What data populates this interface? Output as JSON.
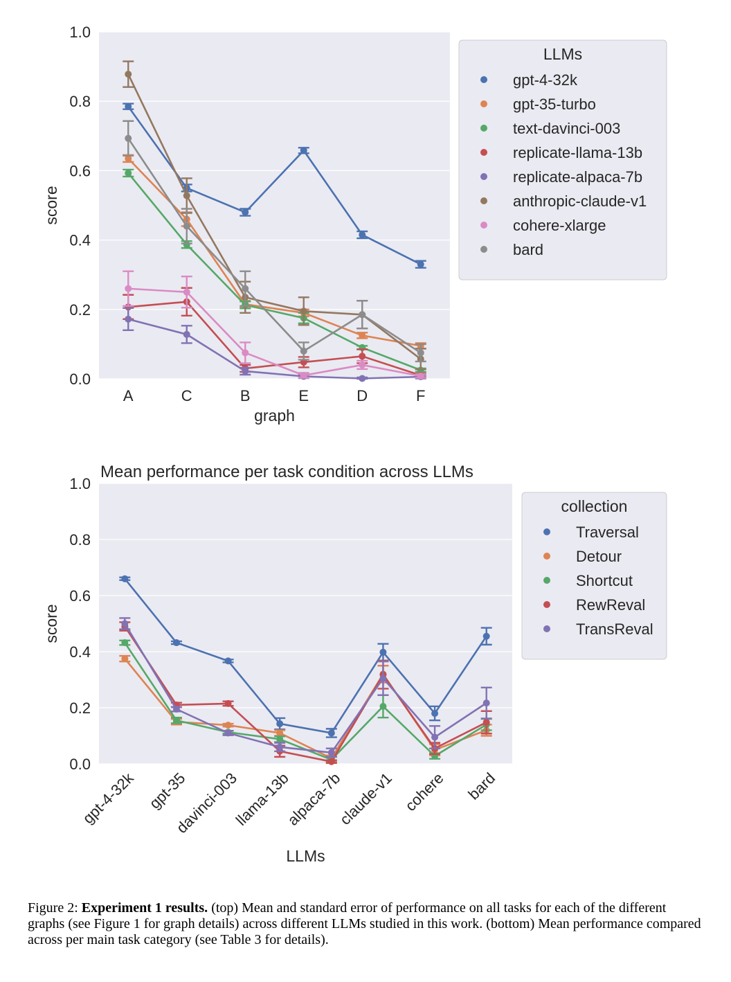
{
  "chart_data": [
    {
      "type": "line",
      "title": "",
      "xlabel": "graph",
      "ylabel": "score",
      "ylim": [
        0,
        1.0
      ],
      "yticks": [
        "0.0",
        "0.2",
        "0.4",
        "0.6",
        "0.8",
        "1.0"
      ],
      "grid": true,
      "legend_title": "LLMs",
      "legend_position": "right",
      "categories": [
        "A",
        "C",
        "B",
        "E",
        "D",
        "F"
      ],
      "series": [
        {
          "name": "gpt-4-32k",
          "color": "#4c72b0",
          "values": [
            0.785,
            0.55,
            0.48,
            0.658,
            0.415,
            0.33
          ],
          "err": [
            0.008,
            0.01,
            0.01,
            0.008,
            0.01,
            0.01
          ]
        },
        {
          "name": "gpt-35-turbo",
          "color": "#dd8452",
          "values": [
            0.635,
            0.46,
            0.215,
            0.19,
            0.125,
            0.095
          ],
          "err": [
            0.01,
            0.02,
            0.01,
            0.01,
            0.008,
            0.008
          ]
        },
        {
          "name": "text-davinci-003",
          "color": "#55a868",
          "values": [
            0.593,
            0.387,
            0.213,
            0.175,
            0.09,
            0.025
          ],
          "err": [
            0.01,
            0.01,
            0.01,
            0.015,
            0.005,
            0.005
          ]
        },
        {
          "name": "replicate-llama-13b",
          "color": "#c44e52",
          "values": [
            0.207,
            0.222,
            0.03,
            0.048,
            0.065,
            0.01
          ],
          "err": [
            0.035,
            0.04,
            0.01,
            0.015,
            0.02,
            0.005
          ]
        },
        {
          "name": "replicate-alpaca-7b",
          "color": "#8172b3",
          "values": [
            0.172,
            0.128,
            0.022,
            0.007,
            0.001,
            0.006
          ],
          "err": [
            0.032,
            0.025,
            0.01,
            0.005,
            0.003,
            0.005
          ]
        },
        {
          "name": "anthropic-claude-v1",
          "color": "#937860",
          "values": [
            0.878,
            0.528,
            0.235,
            0.195,
            0.185,
            0.057
          ],
          "err": [
            0.037,
            0.05,
            0.045,
            0.04,
            0.04,
            0.03
          ]
        },
        {
          "name": "cohere-xlarge",
          "color": "#da8bc3",
          "values": [
            0.26,
            0.25,
            0.075,
            0.01,
            0.04,
            0.008
          ],
          "err": [
            0.05,
            0.045,
            0.03,
            0.007,
            0.012,
            0.005
          ]
        },
        {
          "name": "bard",
          "color": "#8c8c8c",
          "values": [
            0.693,
            0.44,
            0.26,
            0.08,
            0.185,
            0.075
          ],
          "err": [
            0.05,
            0.05,
            0.05,
            0.025,
            0.04,
            0.025
          ]
        }
      ]
    },
    {
      "type": "line",
      "title": "Mean performance per task condition across LLMs",
      "xlabel": "LLMs",
      "ylabel": "score",
      "ylim": [
        0,
        1.0
      ],
      "yticks": [
        "0.0",
        "0.2",
        "0.4",
        "0.6",
        "0.8",
        "1.0"
      ],
      "grid": true,
      "legend_title": "collection",
      "legend_position": "right",
      "categories": [
        "gpt-4-32k",
        "gpt-35",
        "davinci-003",
        "llama-13b",
        "alpaca-7b",
        "claude-v1",
        "cohere",
        "bard"
      ],
      "series": [
        {
          "name": "Traversal",
          "color": "#4c72b0",
          "values": [
            0.66,
            0.432,
            0.367,
            0.143,
            0.11,
            0.398,
            0.18,
            0.455
          ],
          "err": [
            0.005,
            0.005,
            0.005,
            0.02,
            0.015,
            0.03,
            0.025,
            0.03
          ]
        },
        {
          "name": "Detour",
          "color": "#dd8452",
          "values": [
            0.375,
            0.15,
            0.138,
            0.11,
            0.02,
            0.32,
            0.05,
            0.12
          ],
          "err": [
            0.01,
            0.01,
            0.005,
            0.01,
            0.01,
            0.03,
            0.02,
            0.02
          ]
        },
        {
          "name": "Shortcut",
          "color": "#55a868",
          "values": [
            0.432,
            0.155,
            0.113,
            0.088,
            0.015,
            0.205,
            0.028,
            0.14
          ],
          "err": [
            0.008,
            0.01,
            0.005,
            0.01,
            0.01,
            0.04,
            0.01,
            0.02
          ]
        },
        {
          "name": "RewReval",
          "color": "#c44e52",
          "values": [
            0.49,
            0.21,
            0.215,
            0.045,
            0.008,
            0.318,
            0.055,
            0.148
          ],
          "err": [
            0.015,
            0.008,
            0.008,
            0.02,
            0.005,
            0.05,
            0.02,
            0.04
          ]
        },
        {
          "name": "TransReval",
          "color": "#8172b3",
          "values": [
            0.5,
            0.195,
            0.11,
            0.06,
            0.04,
            0.305,
            0.095,
            0.217
          ],
          "err": [
            0.02,
            0.008,
            0.008,
            0.015,
            0.015,
            0.06,
            0.04,
            0.055
          ]
        }
      ]
    }
  ],
  "caption": {
    "label": "Figure 2:",
    "bold": "Experiment 1 results.",
    "text": "(top) Mean and standard error of performance on all tasks for each of the different graphs (see Figure 1 for graph details) across different LLMs studied in this work. (bottom) Mean performance compared across per main task category (see Table 3 for details)."
  }
}
